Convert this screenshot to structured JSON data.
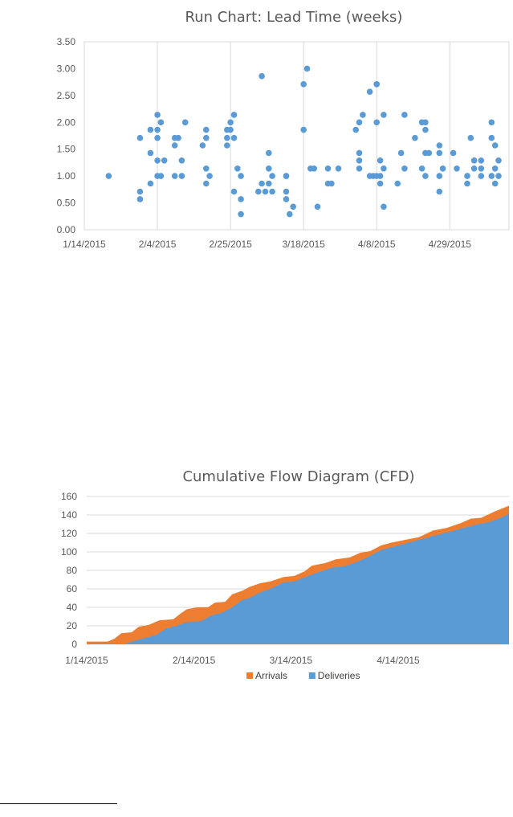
{
  "chart_data": [
    {
      "type": "scatter",
      "title": "Run Chart: Lead Time (weeks)",
      "xlabel": "",
      "ylabel": "",
      "x_ticks": [
        "1/14/2015",
        "2/4/2015",
        "2/25/2015",
        "3/18/2015",
        "4/8/2015",
        "4/29/2015"
      ],
      "x_range": [
        "1/14/2015",
        "5/16/2015"
      ],
      "y_ticks": [
        "0.00",
        "0.50",
        "1.00",
        "1.50",
        "2.00",
        "2.50",
        "3.00",
        "3.50"
      ],
      "ylim": [
        0,
        3.5
      ],
      "grid": "vertical",
      "color": "#5b9bd5",
      "points": [
        [
          "1/21/2015",
          1.0
        ],
        [
          "1/30/2015",
          1.71
        ],
        [
          "1/30/2015",
          0.71
        ],
        [
          "1/30/2015",
          0.57
        ],
        [
          "2/2/2015",
          0.86
        ],
        [
          "2/2/2015",
          1.86
        ],
        [
          "2/2/2015",
          1.43
        ],
        [
          "2/4/2015",
          2.14
        ],
        [
          "2/4/2015",
          1.86
        ],
        [
          "2/4/2015",
          1.71
        ],
        [
          "2/4/2015",
          1.29
        ],
        [
          "2/4/2015",
          1.0
        ],
        [
          "2/5/2015",
          2.0
        ],
        [
          "2/5/2015",
          1.0
        ],
        [
          "2/6/2015",
          1.29
        ],
        [
          "2/9/2015",
          1.71
        ],
        [
          "2/9/2015",
          1.57
        ],
        [
          "2/9/2015",
          1.0
        ],
        [
          "2/10/2015",
          1.71
        ],
        [
          "2/11/2015",
          1.29
        ],
        [
          "2/11/2015",
          1.0
        ],
        [
          "2/12/2015",
          2.0
        ],
        [
          "2/17/2015",
          1.57
        ],
        [
          "2/18/2015",
          1.86
        ],
        [
          "2/18/2015",
          1.71
        ],
        [
          "2/18/2015",
          1.14
        ],
        [
          "2/18/2015",
          0.86
        ],
        [
          "2/19/2015",
          1.0
        ],
        [
          "2/24/2015",
          1.86
        ],
        [
          "2/24/2015",
          1.71
        ],
        [
          "2/24/2015",
          1.57
        ],
        [
          "2/25/2015",
          2.0
        ],
        [
          "2/25/2015",
          1.86
        ],
        [
          "2/26/2015",
          2.14
        ],
        [
          "2/26/2015",
          1.71
        ],
        [
          "2/26/2015",
          0.71
        ],
        [
          "2/27/2015",
          1.14
        ],
        [
          "2/28/2015",
          1.0
        ],
        [
          "2/28/2015",
          0.57
        ],
        [
          "2/28/2015",
          0.29
        ],
        [
          "3/5/2015",
          0.71
        ],
        [
          "3/6/2015",
          0.86
        ],
        [
          "3/6/2015",
          2.86
        ],
        [
          "3/7/2015",
          0.71
        ],
        [
          "3/8/2015",
          1.43
        ],
        [
          "3/8/2015",
          1.14
        ],
        [
          "3/8/2015",
          0.86
        ],
        [
          "3/9/2015",
          1.0
        ],
        [
          "3/9/2015",
          0.71
        ],
        [
          "3/13/2015",
          1.0
        ],
        [
          "3/13/2015",
          1.0
        ],
        [
          "3/13/2015",
          0.71
        ],
        [
          "3/13/2015",
          0.57
        ],
        [
          "3/14/2015",
          0.29
        ],
        [
          "3/15/2015",
          0.43
        ],
        [
          "3/18/2015",
          2.71
        ],
        [
          "3/18/2015",
          1.86
        ],
        [
          "3/19/2015",
          3.0
        ],
        [
          "3/20/2015",
          1.14
        ],
        [
          "3/21/2015",
          1.14
        ],
        [
          "3/22/2015",
          0.43
        ],
        [
          "3/25/2015",
          0.86
        ],
        [
          "3/25/2015",
          1.14
        ],
        [
          "3/26/2015",
          0.86
        ],
        [
          "3/28/2015",
          1.14
        ],
        [
          "4/2/2015",
          1.86
        ],
        [
          "4/3/2015",
          2.0
        ],
        [
          "4/3/2015",
          1.43
        ],
        [
          "4/3/2015",
          1.29
        ],
        [
          "4/3/2015",
          1.14
        ],
        [
          "4/4/2015",
          2.14
        ],
        [
          "4/6/2015",
          2.57
        ],
        [
          "4/6/2015",
          1.0
        ],
        [
          "4/7/2015",
          1.0
        ],
        [
          "4/8/2015",
          2.71
        ],
        [
          "4/8/2015",
          2.71
        ],
        [
          "4/8/2015",
          2.0
        ],
        [
          "4/8/2015",
          1.0
        ],
        [
          "4/9/2015",
          1.29
        ],
        [
          "4/9/2015",
          1.0
        ],
        [
          "4/9/2015",
          0.86
        ],
        [
          "4/10/2015",
          2.14
        ],
        [
          "4/10/2015",
          1.14
        ],
        [
          "4/10/2015",
          0.43
        ],
        [
          "4/14/2015",
          0.86
        ],
        [
          "4/15/2015",
          1.43
        ],
        [
          "4/16/2015",
          2.14
        ],
        [
          "4/16/2015",
          1.14
        ],
        [
          "4/19/2015",
          1.71
        ],
        [
          "4/21/2015",
          2.0
        ],
        [
          "4/21/2015",
          1.14
        ],
        [
          "4/22/2015",
          2.0
        ],
        [
          "4/22/2015",
          1.86
        ],
        [
          "4/22/2015",
          1.43
        ],
        [
          "4/22/2015",
          1.0
        ],
        [
          "4/23/2015",
          1.43
        ],
        [
          "4/26/2015",
          1.57
        ],
        [
          "4/26/2015",
          1.43
        ],
        [
          "4/26/2015",
          1.0
        ],
        [
          "4/26/2015",
          0.71
        ],
        [
          "4/27/2015",
          1.14
        ],
        [
          "4/30/2015",
          1.43
        ],
        [
          "5/1/2015",
          1.14
        ],
        [
          "5/4/2015",
          1.0
        ],
        [
          "5/4/2015",
          0.86
        ],
        [
          "5/5/2015",
          1.71
        ],
        [
          "5/6/2015",
          1.29
        ],
        [
          "5/6/2015",
          1.14
        ],
        [
          "5/8/2015",
          1.29
        ],
        [
          "5/8/2015",
          1.14
        ],
        [
          "5/8/2015",
          1.0
        ],
        [
          "5/11/2015",
          2.0
        ],
        [
          "5/11/2015",
          1.71
        ],
        [
          "5/11/2015",
          1.0
        ],
        [
          "5/12/2015",
          1.57
        ],
        [
          "5/12/2015",
          1.14
        ],
        [
          "5/12/2015",
          0.86
        ],
        [
          "5/13/2015",
          1.29
        ],
        [
          "5/13/2015",
          1.0
        ]
      ]
    },
    {
      "type": "area",
      "title": "Cumulative Flow Diagram (CFD)",
      "xlabel": "",
      "ylabel": "",
      "x_ticks": [
        "1/14/2015",
        "2/14/2015",
        "3/14/2015",
        "4/14/2015"
      ],
      "x_range": [
        "1/14/2015",
        "5/16/2015"
      ],
      "y_ticks": [
        "0",
        "20",
        "40",
        "60",
        "80",
        "100",
        "120",
        "140",
        "160"
      ],
      "ylim": [
        0,
        160
      ],
      "grid": "horizontal",
      "legend_position": "bottom",
      "series": [
        {
          "name": "Arrivals",
          "color": "#ed7d31",
          "points": [
            [
              "1/14/2015",
              3
            ],
            [
              "1/20/2015",
              3
            ],
            [
              "1/22/2015",
              6
            ],
            [
              "1/24/2015",
              12
            ],
            [
              "1/27/2015",
              13
            ],
            [
              "1/29/2015",
              19
            ],
            [
              "2/1/2015",
              21
            ],
            [
              "2/4/2015",
              26
            ],
            [
              "2/8/2015",
              27
            ],
            [
              "2/10/2015",
              33
            ],
            [
              "2/12/2015",
              38
            ],
            [
              "2/15/2015",
              40
            ],
            [
              "2/18/2015",
              40
            ],
            [
              "2/20/2015",
              45
            ],
            [
              "2/23/2015",
              46
            ],
            [
              "2/25/2015",
              54
            ],
            [
              "2/28/2015",
              58
            ],
            [
              "3/2/2015",
              62
            ],
            [
              "3/5/2015",
              66
            ],
            [
              "3/8/2015",
              68
            ],
            [
              "3/12/2015",
              73
            ],
            [
              "3/15/2015",
              74
            ],
            [
              "3/18/2015",
              79
            ],
            [
              "3/20/2015",
              85
            ],
            [
              "3/24/2015",
              88
            ],
            [
              "3/27/2015",
              92
            ],
            [
              "3/31/2015",
              94
            ],
            [
              "4/3/2015",
              99
            ],
            [
              "4/6/2015",
              101
            ],
            [
              "4/9/2015",
              107
            ],
            [
              "4/12/2015",
              110
            ],
            [
              "4/16/2015",
              113
            ],
            [
              "4/20/2015",
              116
            ],
            [
              "4/24/2015",
              123
            ],
            [
              "4/28/2015",
              126
            ],
            [
              "5/2/2015",
              131
            ],
            [
              "5/5/2015",
              136
            ],
            [
              "5/8/2015",
              137
            ],
            [
              "5/12/2015",
              144
            ],
            [
              "5/16/2015",
              150
            ]
          ]
        },
        {
          "name": "Deliveries",
          "color": "#5b9bd5",
          "points": [
            [
              "1/14/2015",
              0
            ],
            [
              "1/25/2015",
              0
            ],
            [
              "1/27/2015",
              3
            ],
            [
              "1/30/2015",
              6
            ],
            [
              "2/3/2015",
              10
            ],
            [
              "2/6/2015",
              17
            ],
            [
              "2/9/2015",
              20
            ],
            [
              "2/12/2015",
              24
            ],
            [
              "2/16/2015",
              25
            ],
            [
              "2/19/2015",
              31
            ],
            [
              "2/22/2015",
              34
            ],
            [
              "2/25/2015",
              40
            ],
            [
              "2/28/2015",
              48
            ],
            [
              "3/2/2015",
              50
            ],
            [
              "3/5/2015",
              56
            ],
            [
              "3/8/2015",
              60
            ],
            [
              "3/12/2015",
              67
            ],
            [
              "3/15/2015",
              68
            ],
            [
              "3/19/2015",
              74
            ],
            [
              "3/22/2015",
              78
            ],
            [
              "3/26/2015",
              83
            ],
            [
              "3/30/2015",
              85
            ],
            [
              "4/2/2015",
              89
            ],
            [
              "4/5/2015",
              94
            ],
            [
              "4/9/2015",
              102
            ],
            [
              "4/13/2015",
              106
            ],
            [
              "4/17/2015",
              110
            ],
            [
              "4/21/2015",
              114
            ],
            [
              "4/25/2015",
              118
            ],
            [
              "4/29/2015",
              122
            ],
            [
              "5/3/2015",
              126
            ],
            [
              "5/7/2015",
              130
            ],
            [
              "5/10/2015",
              132
            ],
            [
              "5/13/2015",
              136
            ],
            [
              "5/16/2015",
              141
            ]
          ]
        }
      ]
    }
  ]
}
